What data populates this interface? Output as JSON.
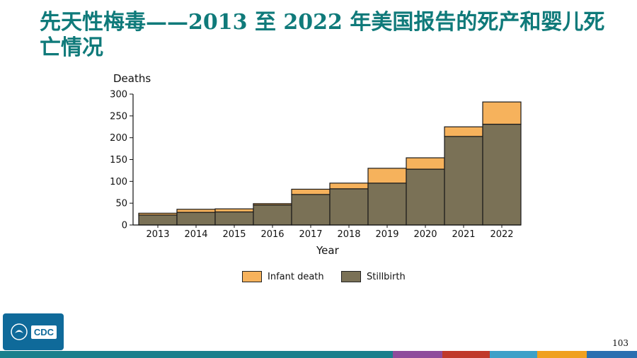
{
  "title": "先天性梅毒——2013 至 2022 年美国报告的死产和婴儿死亡情况",
  "page_number": "103",
  "logo_text": "CDC",
  "chart_data": {
    "type": "bar",
    "stacked": true,
    "ylabel": "Deaths",
    "xlabel": "Year",
    "ylim": [
      0,
      300
    ],
    "yticks": [
      0,
      50,
      100,
      150,
      200,
      250,
      300
    ],
    "categories": [
      "2013",
      "2014",
      "2015",
      "2016",
      "2017",
      "2018",
      "2019",
      "2020",
      "2021",
      "2022"
    ],
    "series": [
      {
        "name": "Stillbirth",
        "color": "#7a7156",
        "values": [
          23,
          29,
          30,
          46,
          70,
          83,
          96,
          128,
          203,
          231
        ]
      },
      {
        "name": "Infant death",
        "color": "#f6b25c",
        "values": [
          4,
          7,
          7,
          3,
          12,
          13,
          34,
          26,
          22,
          51
        ]
      }
    ],
    "legend_position": "bottom"
  },
  "colors": {
    "title": "#0f7a7a",
    "footer": [
      "#1a7f8c",
      "#1a7f8c",
      "#8e4b9b",
      "#c0392b",
      "#3da0c8",
      "#f0a020",
      "#2a6fb0"
    ]
  }
}
